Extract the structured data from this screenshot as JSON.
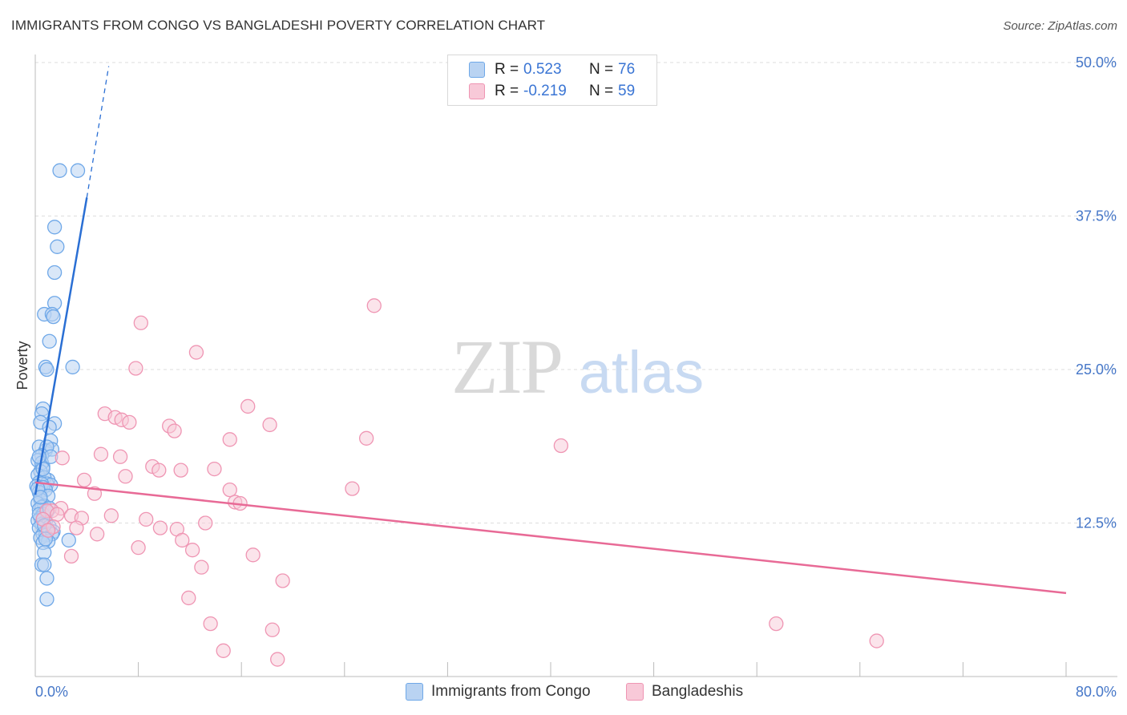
{
  "title": "IMMIGRANTS FROM CONGO VS BANGLADESHI POVERTY CORRELATION CHART",
  "source": "Source: ZipAtlas.com",
  "watermark": {
    "zip": "ZIP",
    "atlas": "atlas"
  },
  "colors": {
    "congo": "#6fa8e8",
    "congo_fill": "#b9d3f2",
    "congo_line": "#2a6fd4",
    "bangladeshi": "#ef95b3",
    "bangladeshi_fill": "#f8c9d8",
    "bangladeshi_line": "#e86a96",
    "axis_text": "#4677c8",
    "grid": "#dddddd"
  },
  "legend": {
    "congo": {
      "r_label": "R =",
      "r_value": "0.523",
      "n_label": "N =",
      "n_value": "76"
    },
    "bangladeshi": {
      "r_label": "R =",
      "r_value": "-0.219",
      "n_label": "N =",
      "n_value": "59"
    }
  },
  "chart_data": {
    "type": "scatter",
    "title": "IMMIGRANTS FROM CONGO VS BANGLADESHI POVERTY CORRELATION CHART",
    "xlabel": "",
    "ylabel": "Poverty",
    "xlim": [
      0,
      80
    ],
    "ylim": [
      0,
      50
    ],
    "x_tick_labels": [
      "0.0%",
      "80.0%"
    ],
    "y_ticks": [
      12.5,
      25.0,
      37.5,
      50.0
    ],
    "y_tick_labels": [
      "12.5%",
      "25.0%",
      "37.5%",
      "50.0%"
    ],
    "grid": true,
    "legend_position": "bottom",
    "series": [
      {
        "name": "Immigrants from Congo",
        "R": 0.523,
        "N": 76,
        "trend": {
          "x0": 0.0,
          "y0": 14.8,
          "x1": 4.0,
          "y1": 39.0,
          "dashed_to_x": 5.7,
          "dashed_to_y": 49.7
        },
        "points": [
          [
            1.9,
            41.2
          ],
          [
            3.3,
            41.2
          ],
          [
            1.5,
            36.6
          ],
          [
            1.7,
            35.0
          ],
          [
            1.5,
            32.9
          ],
          [
            1.5,
            30.4
          ],
          [
            0.7,
            29.5
          ],
          [
            1.3,
            29.5
          ],
          [
            1.4,
            29.3
          ],
          [
            1.1,
            27.3
          ],
          [
            0.8,
            25.2
          ],
          [
            0.9,
            25.0
          ],
          [
            2.9,
            25.2
          ],
          [
            0.6,
            21.8
          ],
          [
            0.5,
            21.4
          ],
          [
            1.5,
            20.6
          ],
          [
            0.4,
            20.7
          ],
          [
            1.1,
            20.3
          ],
          [
            1.2,
            19.2
          ],
          [
            0.3,
            18.7
          ],
          [
            0.8,
            18.4
          ],
          [
            1.3,
            18.5
          ],
          [
            0.9,
            18.7
          ],
          [
            0.5,
            18.0
          ],
          [
            0.2,
            17.6
          ],
          [
            0.6,
            17.1
          ],
          [
            0.5,
            17.4
          ],
          [
            0.4,
            16.7
          ],
          [
            0.2,
            16.4
          ],
          [
            1.0,
            16.0
          ],
          [
            0.7,
            16.2
          ],
          [
            0.3,
            15.8
          ],
          [
            0.9,
            15.7
          ],
          [
            1.2,
            15.6
          ],
          [
            0.5,
            15.7
          ],
          [
            0.1,
            15.5
          ],
          [
            0.6,
            15.4
          ],
          [
            0.8,
            15.2
          ],
          [
            0.3,
            15.0
          ],
          [
            1.0,
            14.7
          ],
          [
            0.4,
            14.4
          ],
          [
            0.2,
            14.1
          ],
          [
            0.7,
            13.9
          ],
          [
            0.5,
            13.8
          ],
          [
            0.3,
            13.6
          ],
          [
            0.9,
            13.4
          ],
          [
            0.6,
            13.2
          ],
          [
            0.4,
            12.9
          ],
          [
            0.2,
            12.7
          ],
          [
            0.8,
            12.6
          ],
          [
            0.5,
            12.4
          ],
          [
            1.1,
            12.2
          ],
          [
            0.3,
            12.1
          ],
          [
            0.9,
            11.9
          ],
          [
            1.4,
            11.8
          ],
          [
            0.6,
            11.6
          ],
          [
            0.8,
            11.5
          ],
          [
            1.3,
            11.6
          ],
          [
            0.4,
            11.3
          ],
          [
            2.6,
            11.1
          ],
          [
            1.0,
            11.0
          ],
          [
            0.6,
            10.9
          ],
          [
            0.7,
            10.1
          ],
          [
            0.5,
            9.1
          ],
          [
            0.7,
            9.1
          ],
          [
            0.9,
            8.0
          ],
          [
            0.9,
            6.3
          ],
          [
            0.3,
            13.2
          ],
          [
            0.7,
            12.3
          ],
          [
            1.1,
            13.7
          ],
          [
            0.2,
            15.3
          ],
          [
            0.6,
            16.9
          ],
          [
            0.4,
            14.6
          ],
          [
            1.2,
            17.9
          ],
          [
            0.8,
            11.2
          ],
          [
            0.3,
            17.9
          ]
        ]
      },
      {
        "name": "Bangladeshis",
        "R": -0.219,
        "N": 59,
        "trend": {
          "x0": 0.0,
          "y0": 15.8,
          "x1": 80.0,
          "y1": 6.8
        },
        "points": [
          [
            26.3,
            30.2
          ],
          [
            8.2,
            28.8
          ],
          [
            12.5,
            26.4
          ],
          [
            7.8,
            25.1
          ],
          [
            16.5,
            22.0
          ],
          [
            5.4,
            21.4
          ],
          [
            6.2,
            21.1
          ],
          [
            6.7,
            20.9
          ],
          [
            7.3,
            20.7
          ],
          [
            18.2,
            20.5
          ],
          [
            10.4,
            20.4
          ],
          [
            10.8,
            20.0
          ],
          [
            25.7,
            19.4
          ],
          [
            15.1,
            19.3
          ],
          [
            40.8,
            18.8
          ],
          [
            5.1,
            18.1
          ],
          [
            6.6,
            17.9
          ],
          [
            2.1,
            17.8
          ],
          [
            9.1,
            17.1
          ],
          [
            13.9,
            16.9
          ],
          [
            9.6,
            16.8
          ],
          [
            11.3,
            16.8
          ],
          [
            7.0,
            16.3
          ],
          [
            3.8,
            16.0
          ],
          [
            24.6,
            15.3
          ],
          [
            15.1,
            15.2
          ],
          [
            4.6,
            14.9
          ],
          [
            15.5,
            14.2
          ],
          [
            15.9,
            14.1
          ],
          [
            2.0,
            13.7
          ],
          [
            1.3,
            13.5
          ],
          [
            0.9,
            13.5
          ],
          [
            1.7,
            13.2
          ],
          [
            2.8,
            13.1
          ],
          [
            5.9,
            13.1
          ],
          [
            0.6,
            12.8
          ],
          [
            3.6,
            12.9
          ],
          [
            8.6,
            12.8
          ],
          [
            13.2,
            12.5
          ],
          [
            1.4,
            12.2
          ],
          [
            3.2,
            12.1
          ],
          [
            9.7,
            12.1
          ],
          [
            11.0,
            12.0
          ],
          [
            11.4,
            11.1
          ],
          [
            4.8,
            11.6
          ],
          [
            1.0,
            11.9
          ],
          [
            8.0,
            10.5
          ],
          [
            12.2,
            10.3
          ],
          [
            16.9,
            9.9
          ],
          [
            2.8,
            9.8
          ],
          [
            12.9,
            8.9
          ],
          [
            19.2,
            7.8
          ],
          [
            11.9,
            6.4
          ],
          [
            13.6,
            4.3
          ],
          [
            57.5,
            4.3
          ],
          [
            18.4,
            3.8
          ],
          [
            65.3,
            2.9
          ],
          [
            14.6,
            2.1
          ],
          [
            18.8,
            1.4
          ]
        ]
      }
    ]
  }
}
